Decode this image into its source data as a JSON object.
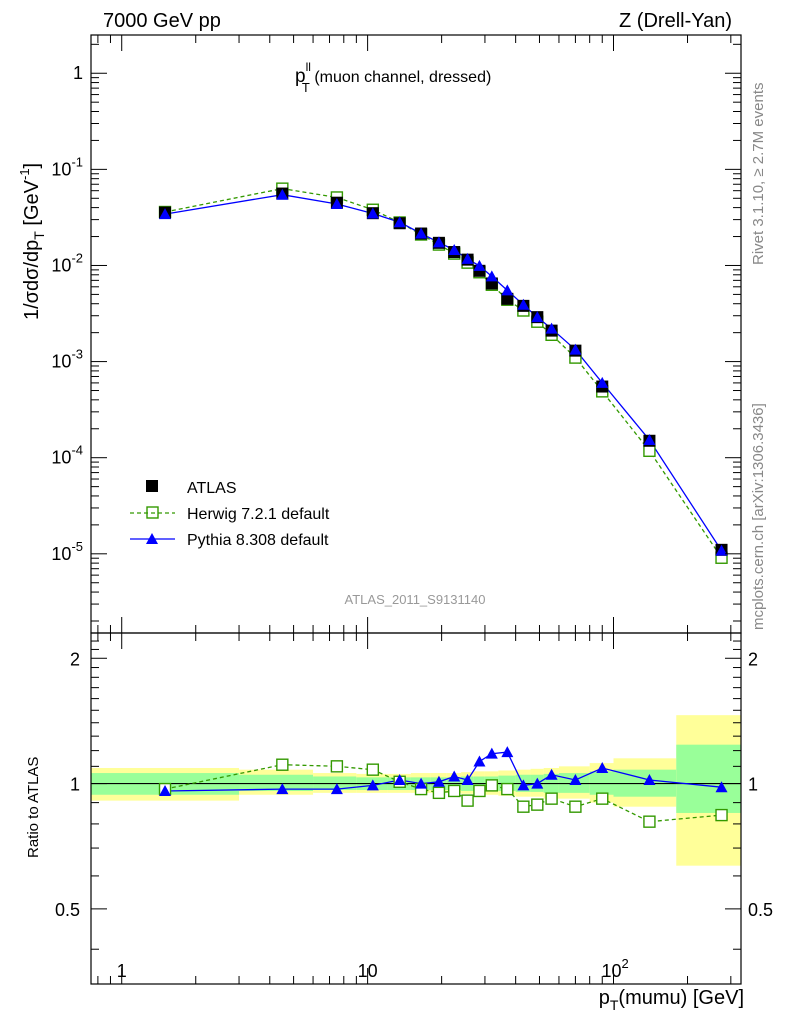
{
  "header": {
    "left": "7000 GeV pp",
    "right": "Z (Drell-Yan)"
  },
  "side_text": {
    "rivet": "Rivet 3.1.10, ≥ 2.7M events",
    "mcplots": "mcplots.cern.ch [arXiv:1306.3436]"
  },
  "panel_title": {
    "main": "p",
    "sup": "ll",
    "sub": "T",
    "rest": " (muon channel, dressed)"
  },
  "analysis_id": "ATLAS_2011_S9131140",
  "axes": {
    "ylabel_main": "1/σdσ/dp",
    "ylabel_main_sub": "T",
    "ylabel_main_unit": " [GeV",
    "ylabel_main_unit_sup": "-1",
    "ylabel_main_close": "]",
    "ylabel_ratio": "Ratio to ATLAS",
    "xlabel": "p",
    "xlabel_sub": "T",
    "xlabel_rest": "(mumu) [GeV]"
  },
  "legend": [
    {
      "label": "ATLAS"
    },
    {
      "label": "Herwig 7.2.1 default"
    },
    {
      "label": "Pythia 8.308 default"
    }
  ],
  "colors": {
    "atlas": "#000000",
    "herwig": "#339900",
    "pythia": "#0000ff",
    "band_inner": "#99ff99",
    "band_outer": "#ffff99"
  },
  "chart_data": [
    {
      "type": "scatter",
      "title": "",
      "xscale": "log",
      "yscale": "log",
      "xlim": [
        0.75,
        330
      ],
      "ylim": [
        1.5e-06,
        2.5
      ],
      "x_ticks": [
        "1",
        "10",
        "10^2"
      ],
      "y_ticks": [
        "10^-5",
        "10^-4",
        "10^-3",
        "10^-2",
        "10^-1",
        "1"
      ],
      "legend_position": "bottom-left",
      "series": [
        {
          "name": "ATLAS",
          "points": [
            [
              1.5,
              0.0355
            ],
            [
              4.5,
              0.056
            ],
            [
              7.5,
              0.045
            ],
            [
              10.5,
              0.035
            ],
            [
              13.5,
              0.0275
            ],
            [
              16.5,
              0.0215
            ],
            [
              19.5,
              0.0172
            ],
            [
              22.5,
              0.0138
            ],
            [
              25.5,
              0.0115
            ],
            [
              28.5,
              0.0088
            ],
            [
              32,
              0.0065
            ],
            [
              37,
              0.0045
            ],
            [
              43,
              0.0038
            ],
            [
              49,
              0.0029
            ],
            [
              56,
              0.0021
            ],
            [
              70,
              0.0013
            ],
            [
              90,
              0.00055
            ],
            [
              140,
              0.00015
            ],
            [
              275,
              1.1e-05
            ]
          ]
        },
        {
          "name": "Herwig 7.2.1 default",
          "points": [
            [
              1.5,
              0.036
            ],
            [
              4.5,
              0.063
            ],
            [
              7.5,
              0.051
            ],
            [
              10.5,
              0.038
            ],
            [
              13.5,
              0.028
            ],
            [
              16.5,
              0.021
            ],
            [
              19.5,
              0.0165
            ],
            [
              22.5,
              0.0133
            ],
            [
              25.5,
              0.0107
            ],
            [
              28.5,
              0.0085
            ],
            [
              32,
              0.0063
            ],
            [
              37,
              0.0044
            ],
            [
              43,
              0.0034
            ],
            [
              49,
              0.0026
            ],
            [
              56,
              0.0019
            ],
            [
              70,
              0.0011
            ],
            [
              90,
              0.00049
            ],
            [
              140,
              0.000118
            ],
            [
              275,
              9.1e-06
            ]
          ]
        },
        {
          "name": "Pythia 8.308 default",
          "points": [
            [
              1.5,
              0.0342
            ],
            [
              4.5,
              0.0545
            ],
            [
              7.5,
              0.0436
            ],
            [
              10.5,
              0.0347
            ],
            [
              13.5,
              0.0282
            ],
            [
              16.5,
              0.0215
            ],
            [
              19.5,
              0.0174
            ],
            [
              22.5,
              0.0145
            ],
            [
              25.5,
              0.0117
            ],
            [
              28.5,
              0.0099
            ],
            [
              32,
              0.0077
            ],
            [
              37,
              0.0055
            ],
            [
              43,
              0.0039
            ],
            [
              49,
              0.0029
            ],
            [
              56,
              0.0022
            ],
            [
              70,
              0.00133
            ],
            [
              90,
              0.0006
            ],
            [
              140,
              0.000153
            ],
            [
              275,
              1.08e-05
            ]
          ]
        }
      ]
    },
    {
      "type": "line",
      "title": "",
      "xscale": "log",
      "xlim": [
        0.75,
        330
      ],
      "ylim": [
        0.33,
        2.3
      ],
      "ylabel": "Ratio to ATLAS",
      "y_ticks": [
        "0.5",
        "1",
        "2"
      ],
      "uncertainty_bands": {
        "bins": [
          [
            0.75,
            3
          ],
          [
            3,
            6
          ],
          [
            6,
            9
          ],
          [
            9,
            12
          ],
          [
            12,
            15
          ],
          [
            15,
            18
          ],
          [
            18,
            21
          ],
          [
            21,
            24
          ],
          [
            24,
            27
          ],
          [
            27,
            30
          ],
          [
            30,
            34
          ],
          [
            34,
            40
          ],
          [
            40,
            46
          ],
          [
            46,
            52
          ],
          [
            52,
            60
          ],
          [
            60,
            80
          ],
          [
            80,
            100
          ],
          [
            100,
            180
          ],
          [
            180,
            330
          ]
        ],
        "inner": [
          [
            0.94,
            1.06
          ],
          [
            0.96,
            1.05
          ],
          [
            0.965,
            1.04
          ],
          [
            0.965,
            1.035
          ],
          [
            0.965,
            1.035
          ],
          [
            0.965,
            1.035
          ],
          [
            0.965,
            1.035
          ],
          [
            0.965,
            1.035
          ],
          [
            0.96,
            1.04
          ],
          [
            0.96,
            1.04
          ],
          [
            0.96,
            1.04
          ],
          [
            0.96,
            1.045
          ],
          [
            0.955,
            1.05
          ],
          [
            0.955,
            1.05
          ],
          [
            0.95,
            1.055
          ],
          [
            0.95,
            1.06
          ],
          [
            0.94,
            1.07
          ],
          [
            0.93,
            1.08
          ],
          [
            0.85,
            1.24
          ]
        ],
        "outer": [
          [
            0.91,
            1.09
          ],
          [
            0.94,
            1.08
          ],
          [
            0.95,
            1.06
          ],
          [
            0.95,
            1.055
          ],
          [
            0.95,
            1.055
          ],
          [
            0.95,
            1.06
          ],
          [
            0.95,
            1.06
          ],
          [
            0.95,
            1.06
          ],
          [
            0.945,
            1.065
          ],
          [
            0.94,
            1.07
          ],
          [
            0.94,
            1.07
          ],
          [
            0.935,
            1.075
          ],
          [
            0.93,
            1.08
          ],
          [
            0.93,
            1.085
          ],
          [
            0.92,
            1.09
          ],
          [
            0.92,
            1.1
          ],
          [
            0.9,
            1.12
          ],
          [
            0.88,
            1.15
          ],
          [
            0.635,
            1.46
          ]
        ]
      },
      "series": [
        {
          "name": "Herwig 7.2.1 default",
          "points": [
            [
              1.5,
              0.97
            ],
            [
              4.5,
              1.11
            ],
            [
              7.5,
              1.1
            ],
            [
              10.5,
              1.08
            ],
            [
              13.5,
              1.01
            ],
            [
              16.5,
              0.97
            ],
            [
              19.5,
              0.95
            ],
            [
              22.5,
              0.96
            ],
            [
              25.5,
              0.91
            ],
            [
              28.5,
              0.96
            ],
            [
              32,
              0.99
            ],
            [
              37,
              0.97
            ],
            [
              43,
              0.88
            ],
            [
              49,
              0.89
            ],
            [
              56,
              0.92
            ],
            [
              70,
              0.88
            ],
            [
              90,
              0.92
            ],
            [
              140,
              0.81
            ],
            [
              275,
              0.84
            ]
          ]
        },
        {
          "name": "Pythia 8.308 default",
          "points": [
            [
              1.5,
              0.96
            ],
            [
              4.5,
              0.97
            ],
            [
              7.5,
              0.97
            ],
            [
              10.5,
              0.99
            ],
            [
              13.5,
              1.02
            ],
            [
              16.5,
              1.0
            ],
            [
              19.5,
              1.01
            ],
            [
              22.5,
              1.04
            ],
            [
              25.5,
              1.02
            ],
            [
              28.5,
              1.13
            ],
            [
              32,
              1.18
            ],
            [
              37,
              1.19
            ],
            [
              43,
              0.99
            ],
            [
              49,
              1.0
            ],
            [
              56,
              1.05
            ],
            [
              70,
              1.02
            ],
            [
              90,
              1.09
            ],
            [
              140,
              1.02
            ],
            [
              275,
              0.98
            ]
          ]
        }
      ]
    }
  ]
}
